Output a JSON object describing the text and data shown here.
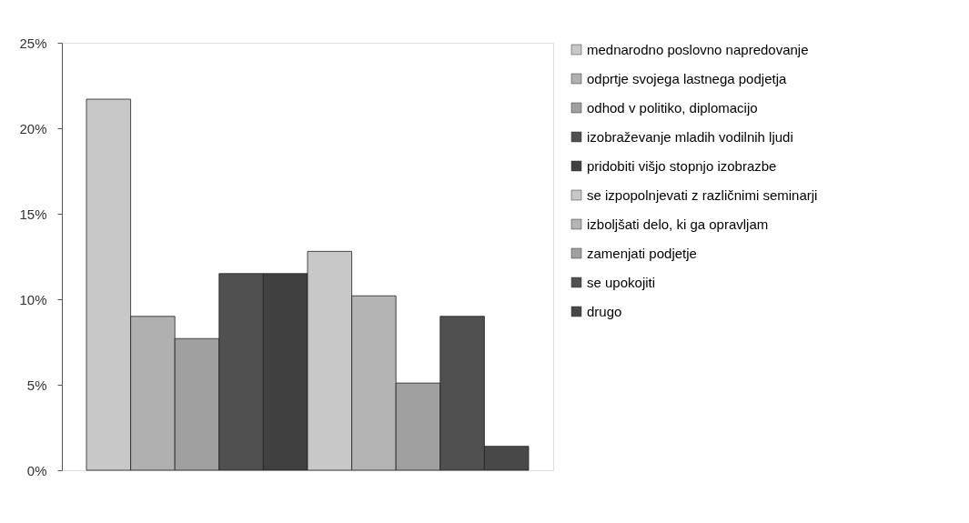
{
  "chart_data": {
    "type": "bar",
    "categories": [
      null
    ],
    "series": [
      {
        "name": "mednarodno poslovno napredovanje",
        "color": "#c8c8c8",
        "values": [
          21.7
        ]
      },
      {
        "name": "odprtje svojega lastnega podjetja",
        "color": "#b0b0b0",
        "values": [
          9.0
        ]
      },
      {
        "name": "odhod v politiko, diplomacijo",
        "color": "#a0a0a0",
        "values": [
          7.7
        ]
      },
      {
        "name": "izobraževanje mladih vodilnih ljudi",
        "color": "#505050",
        "values": [
          11.5
        ]
      },
      {
        "name": "pridobiti višjo stopnjo izobrazbe",
        "color": "#404040",
        "values": [
          11.5
        ]
      },
      {
        "name": "se izpopolnjevati z različnimi seminarji",
        "color": "#c8c8c8",
        "values": [
          12.8
        ]
      },
      {
        "name": "izboljšati delo, ki ga opravljam",
        "color": "#b4b4b4",
        "values": [
          10.2
        ]
      },
      {
        "name": "zamenjati podjetje",
        "color": "#a0a0a0",
        "values": [
          5.1
        ]
      },
      {
        "name": "se upokojiti",
        "color": "#505050",
        "values": [
          9.0
        ]
      },
      {
        "name": "drugo",
        "color": "#484848",
        "values": [
          1.4
        ]
      }
    ],
    "ylim": [
      0,
      25
    ],
    "yticks": [
      {
        "value": 0,
        "label": "0%"
      },
      {
        "value": 5,
        "label": "5%"
      },
      {
        "value": 10,
        "label": "10%"
      },
      {
        "value": 15,
        "label": "15%"
      },
      {
        "value": 20,
        "label": "20%"
      },
      {
        "value": 25,
        "label": "25%"
      }
    ],
    "legend": "right",
    "grid": false
  }
}
